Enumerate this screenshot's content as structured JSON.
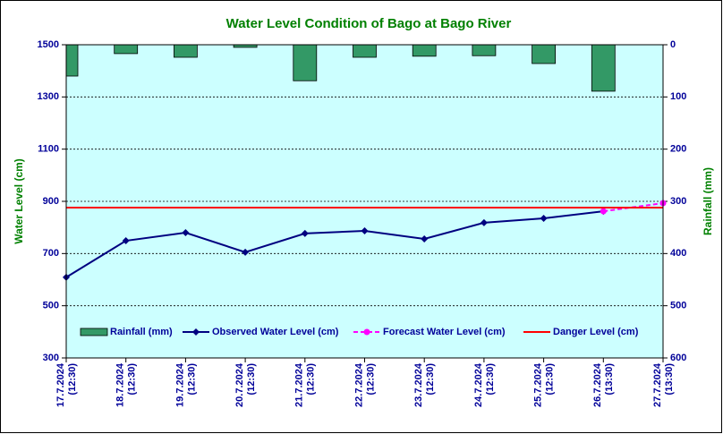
{
  "chart_data": {
    "type": "combo",
    "title": "Water Level Condition of Bago at Bago River",
    "ylabel": "Water Level (cm)",
    "y2label": "Rainfall (mm)",
    "categories": [
      [
        "17.7.2024",
        "(12:30)"
      ],
      [
        "18.7.2024",
        "(12:30)"
      ],
      [
        "19.7.2024",
        "(12:30)"
      ],
      [
        "20.7.2024",
        "(12:30)"
      ],
      [
        "21.7.2024",
        "(12:30)"
      ],
      [
        "22.7.2024",
        "(12:30)"
      ],
      [
        "23.7.2024",
        "(12:30)"
      ],
      [
        "24.7.2024",
        "(12:30)"
      ],
      [
        "25.7.2024",
        "(12:30)"
      ],
      [
        "26.7.2024",
        "(13:30)"
      ],
      [
        "27.7.2024",
        "(13:30)"
      ]
    ],
    "series": [
      {
        "name": "Rainfall (mm)",
        "kind": "bar",
        "axis": "y2",
        "color": "#339966",
        "values": [
          60,
          17,
          24,
          5,
          69,
          24,
          22,
          21,
          36,
          89,
          0
        ]
      },
      {
        "name": "Observed Water Level (cm)",
        "kind": "line",
        "marker": "diamond",
        "color": "#000080",
        "values": [
          609,
          749,
          780,
          705,
          777,
          787,
          756,
          818,
          835,
          862,
          null
        ]
      },
      {
        "name": "Forecast Water Level (cm)",
        "kind": "line",
        "marker": "circle",
        "dashed": true,
        "color": "#ff00ff",
        "values": [
          null,
          null,
          null,
          null,
          null,
          null,
          null,
          null,
          null,
          862,
          893
        ]
      },
      {
        "name": "Danger Level (cm)",
        "kind": "line",
        "color": "#ff0000",
        "values": [
          876,
          876,
          876,
          876,
          876,
          876,
          876,
          876,
          876,
          876,
          876
        ]
      }
    ],
    "ylim": [
      300,
      1500
    ],
    "yticks": [
      300,
      500,
      700,
      900,
      1100,
      1300,
      1500
    ],
    "y2lim": [
      0,
      600
    ],
    "y2ticks": [
      0,
      100,
      200,
      300,
      400,
      500,
      600
    ],
    "y2_inverted": true,
    "grid": true,
    "legend": "bottom",
    "background": "#ccffff"
  }
}
